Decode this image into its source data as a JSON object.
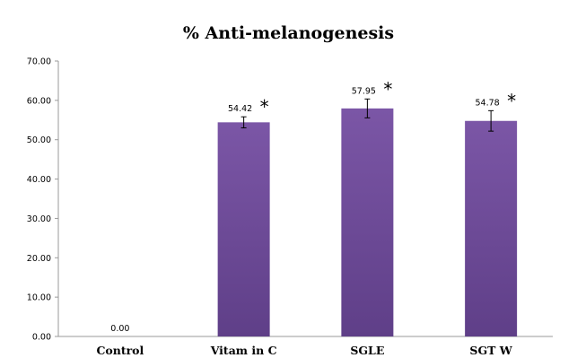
{
  "chart_data": {
    "type": "bar",
    "title": "% Anti-melanogenesis",
    "xlabel": "",
    "ylabel": "",
    "categories": [
      "Control",
      "Vitam in C",
      "SGLE",
      "SGT W"
    ],
    "values": [
      0,
      54.42,
      57.95,
      54.78
    ],
    "errors": [
      0,
      1.4,
      2.4,
      2.6
    ],
    "value_labels": [
      "0.00",
      "54.42",
      "57.95",
      "54.78"
    ],
    "significance": [
      "",
      "*",
      "*",
      "*"
    ],
    "ylim": [
      0,
      70
    ],
    "yticks": [
      0,
      10,
      20,
      30,
      40,
      50,
      60,
      70
    ],
    "ytick_labels": [
      "0.00",
      "10.00",
      "20.00",
      "30.00",
      "40.00",
      "50.00",
      "60.00",
      "70.00"
    ],
    "grid": false,
    "legend": "none",
    "bar_color": "#7b56a6",
    "bar_color_dark": "#5f3f88"
  }
}
